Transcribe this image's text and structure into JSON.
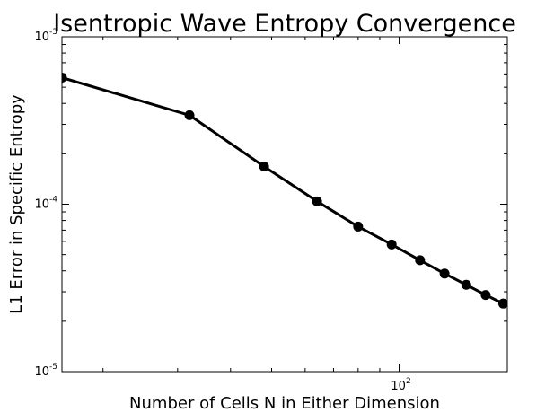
{
  "chart_data": {
    "type": "line",
    "title": "Isentropic Wave Entropy Convergence",
    "xlabel": "Number of Cells N in Either Dimension",
    "ylabel": "L1 Error in Specific Entropy",
    "x_scale": "log",
    "y_scale": "log",
    "xlim": [
      16,
      180
    ],
    "ylim": [
      1e-05,
      0.001
    ],
    "x_ticks": [
      {
        "value": 100,
        "base": "10",
        "exp": "2"
      }
    ],
    "y_ticks": [
      {
        "value": 1e-05,
        "base": "10",
        "exp": "-5"
      },
      {
        "value": 0.0001,
        "base": "10",
        "exp": "-4"
      },
      {
        "value": 0.001,
        "base": "10",
        "exp": "-3"
      }
    ],
    "grid": false,
    "line_color": "#000000",
    "marker": "circle",
    "series": [
      {
        "x": [
          16,
          32,
          48,
          64,
          80,
          96,
          112,
          128,
          144,
          160,
          176
        ],
        "y": [
          0.00057,
          0.00034,
          0.000168,
          0.000104,
          7.35e-05,
          5.75e-05,
          4.63e-05,
          3.85e-05,
          3.3e-05,
          2.87e-05,
          2.55e-05
        ]
      }
    ]
  }
}
